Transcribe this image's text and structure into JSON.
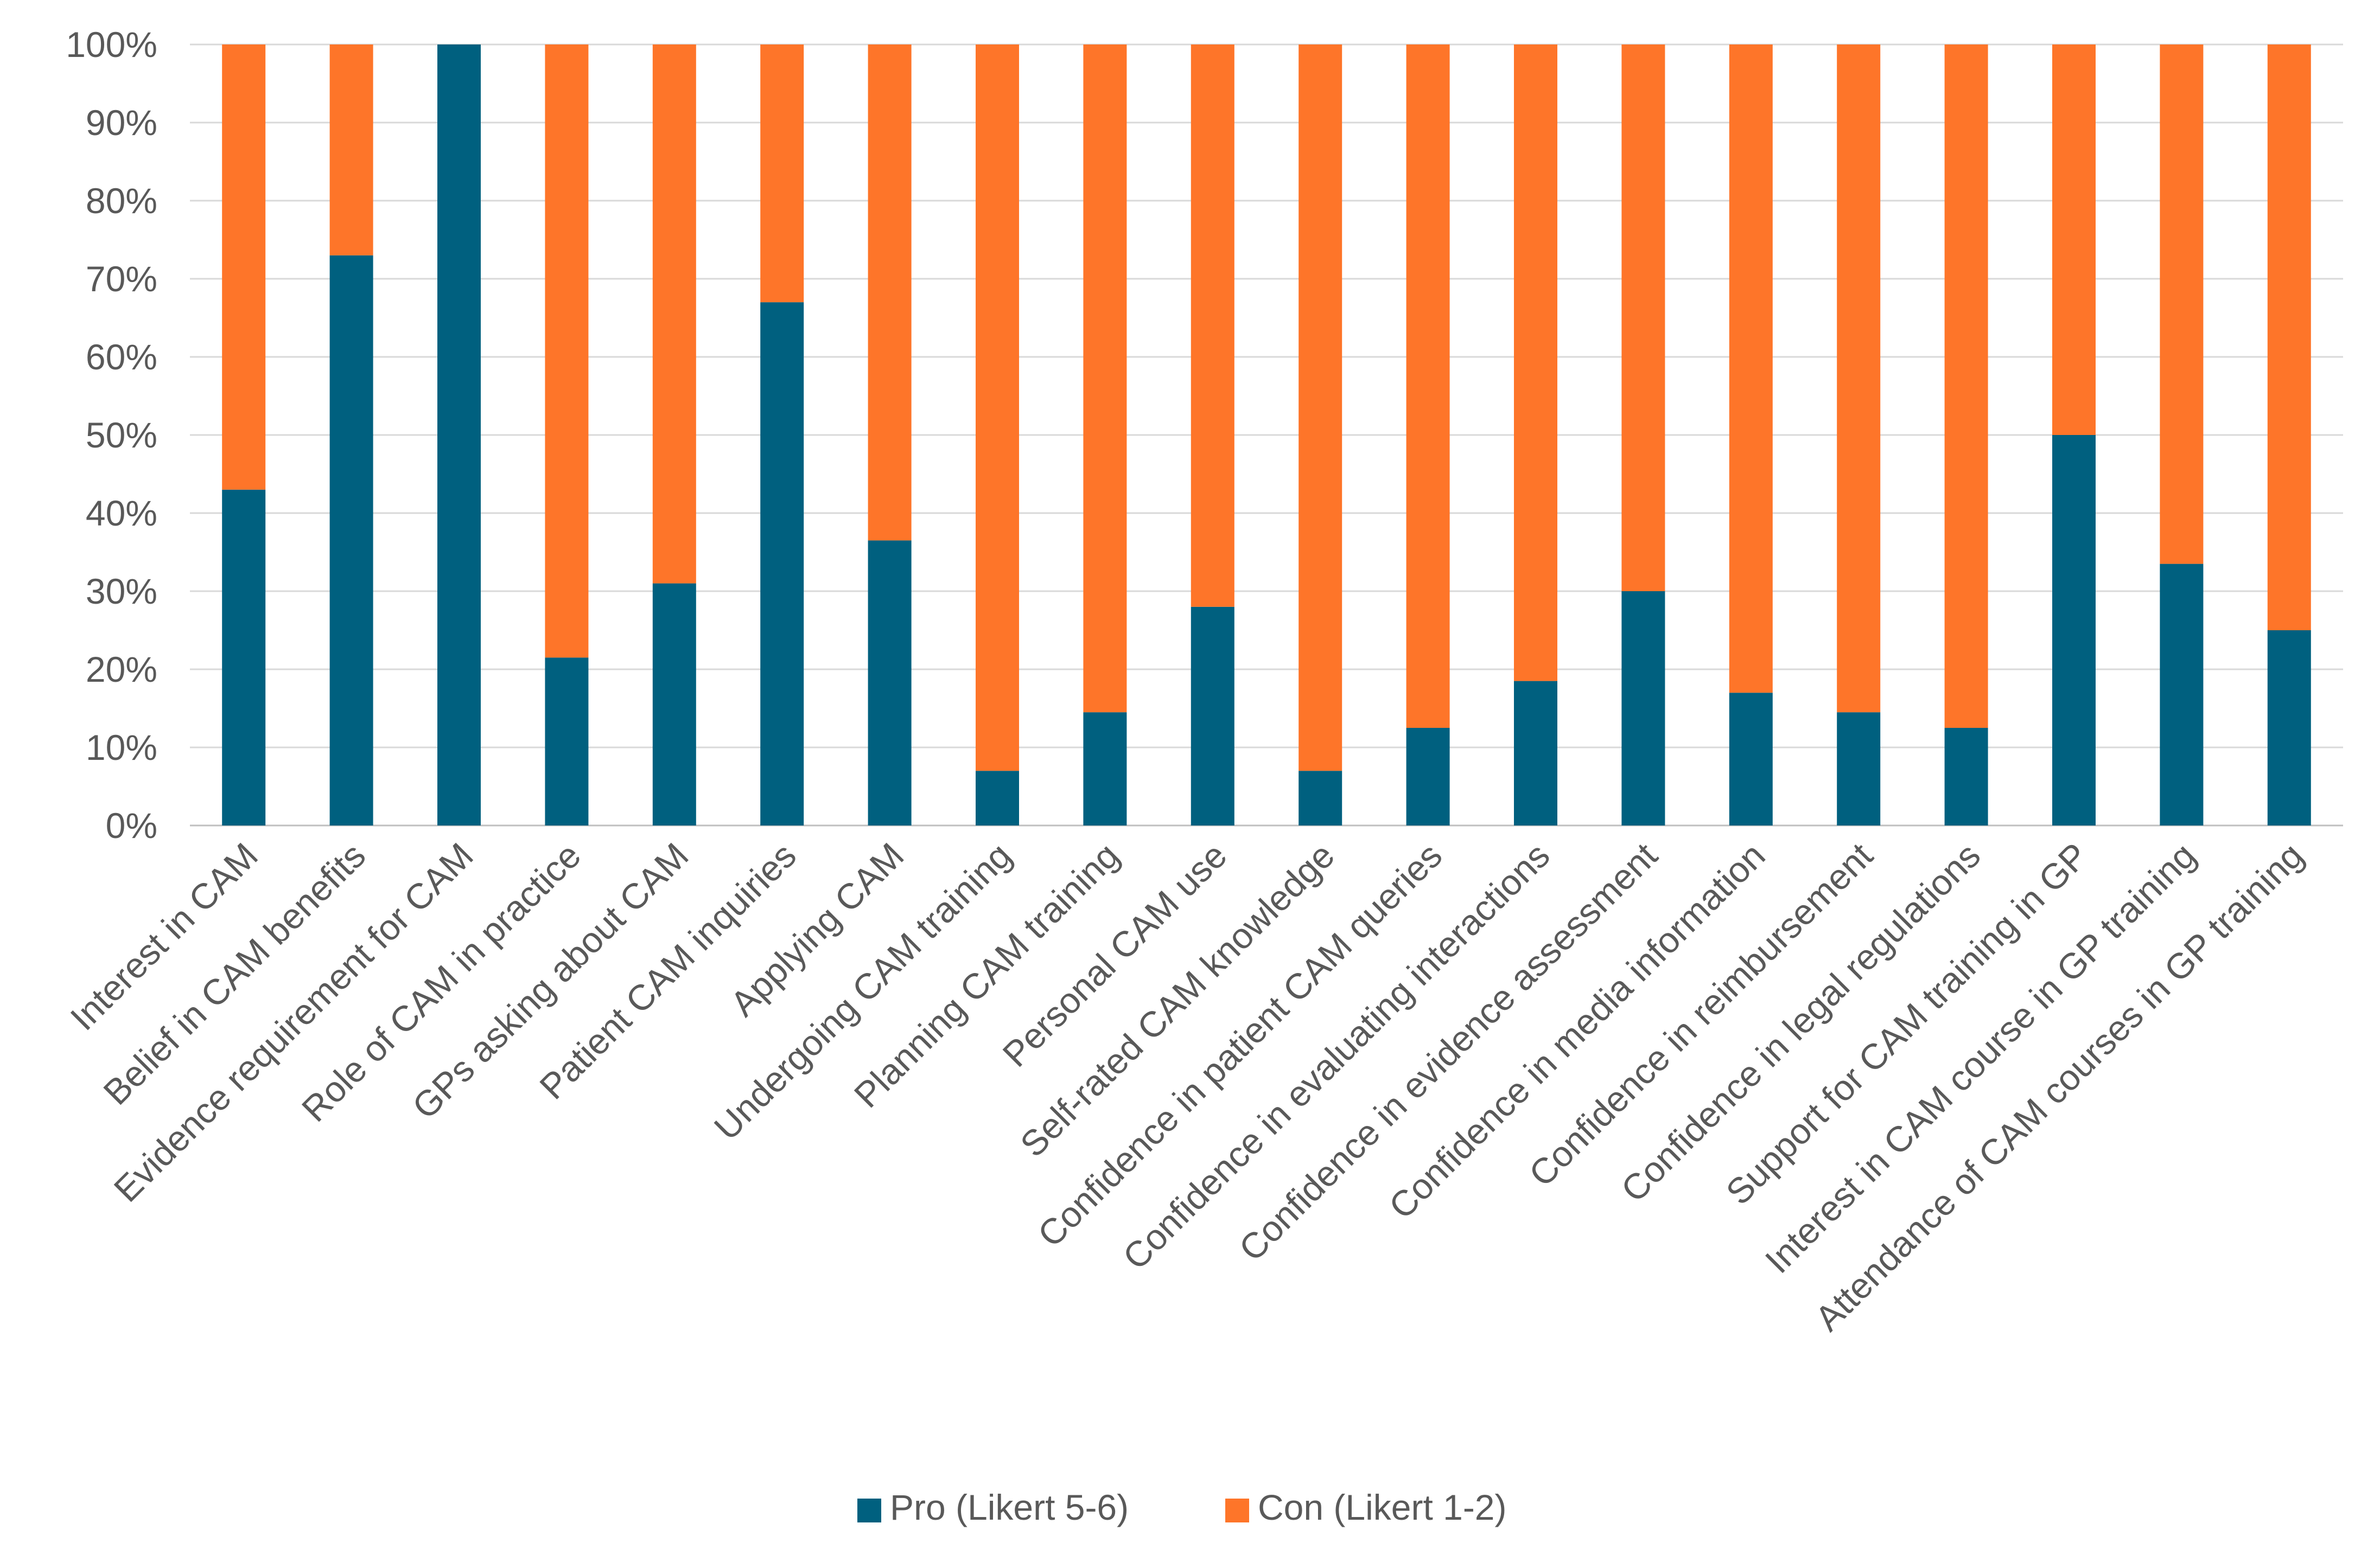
{
  "chart_data": {
    "type": "bar",
    "stacked": true,
    "categories": [
      "Interest in CAM",
      "Belief in CAM benefits",
      "Evidence requirement for CAM",
      "Role of CAM in practice",
      "GPs asking about CAM",
      "Patient CAM inquiries",
      "Applying CAM",
      "Undergoing CAM training",
      "Planning CAM training",
      "Personal CAM use",
      "Self-rated CAM knowledge",
      "Confidence in patient CAM queries",
      "Confidence in evaluating interactions",
      "Confidence in evidence assessment",
      "Confidence in media information",
      "Confidence in reimbursement",
      "Confidence in legal regulations",
      "Support for CAM training in GP",
      "Interest in CAM course in GP training",
      "Attendance of CAM courses in GP training"
    ],
    "series": [
      {
        "name": "Pro (Likert 5-6)",
        "color": "#00607f",
        "values": [
          43,
          73,
          100,
          21.5,
          31,
          67,
          36.5,
          7,
          14.5,
          28,
          7,
          12.5,
          18.5,
          30,
          17,
          14.5,
          12.5,
          50,
          33.5,
          25
        ]
      },
      {
        "name": "Con (Likert 1-2)",
        "color": "#fe7529",
        "values": [
          57,
          27,
          0,
          78.5,
          69,
          33,
          63.5,
          93,
          85.5,
          72,
          93,
          87.5,
          81.5,
          70,
          83,
          85.5,
          87.5,
          50,
          66.5,
          75
        ]
      }
    ],
    "ylim": [
      0,
      100
    ],
    "yticks": [
      "0%",
      "10%",
      "20%",
      "30%",
      "40%",
      "50%",
      "60%",
      "70%",
      "80%",
      "90%",
      "100%"
    ],
    "title": "",
    "xlabel": "",
    "ylabel": "",
    "grid": true,
    "legend_position": "bottom"
  }
}
